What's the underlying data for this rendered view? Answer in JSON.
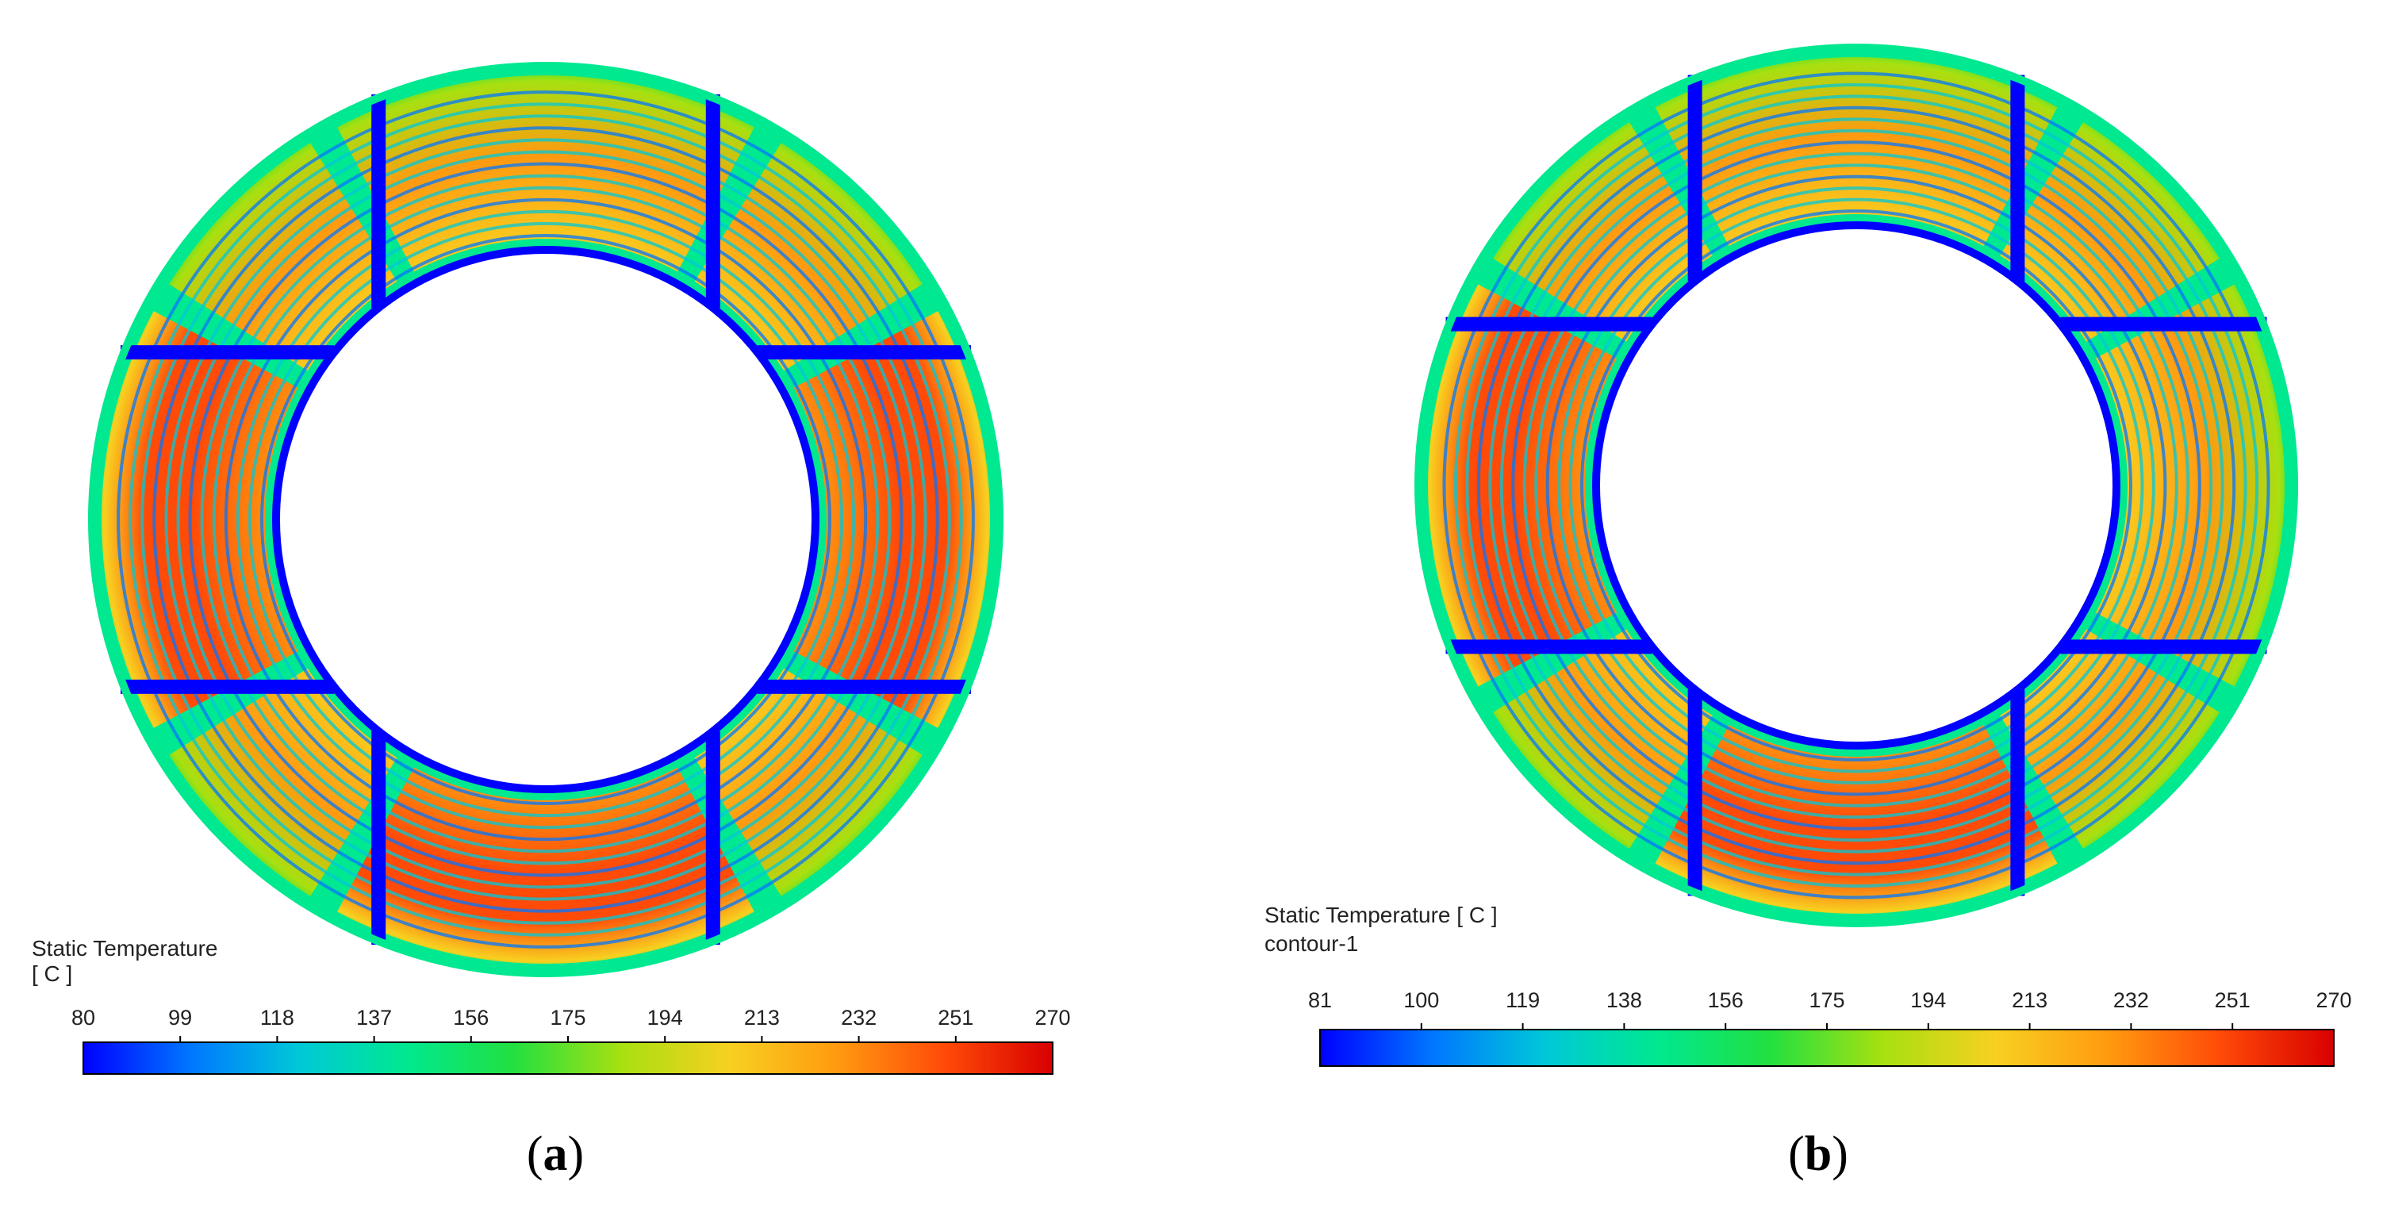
{
  "colormap": [
    "#0000ff",
    "#0077ff",
    "#00c8d8",
    "#00e890",
    "#22e040",
    "#a8e010",
    "#f8d020",
    "#ff9a10",
    "#ff4a08",
    "#d80000"
  ],
  "panels": [
    {
      "id": "a",
      "label": "a",
      "legend_title_line1": "Static Temperature",
      "legend_title_line2": "[ C ]",
      "ticks": [
        "80",
        "99",
        "118",
        "137",
        "156",
        "175",
        "194",
        "213",
        "232",
        "251",
        "270"
      ],
      "range": [
        80,
        270
      ],
      "hot_sectors": [
        "left",
        "right",
        "bottom"
      ]
    },
    {
      "id": "b",
      "label": "b",
      "legend_title_line1": "Static Temperature [ C ]",
      "legend_title_line2": "contour-1",
      "ticks": [
        "81",
        "100",
        "119",
        "138",
        "156",
        "175",
        "194",
        "213",
        "232",
        "251",
        "270"
      ],
      "range": [
        81,
        270
      ],
      "hot_sectors": [
        "left",
        "bottom"
      ]
    }
  ]
}
